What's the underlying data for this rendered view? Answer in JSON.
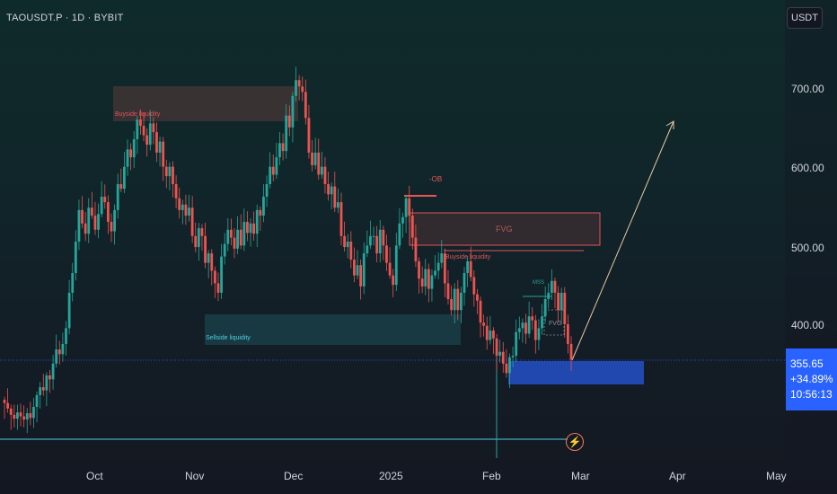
{
  "symbol_title": "TAOUSDT.P · 1D · BYBIT",
  "currency": "USDT",
  "price_tag": {
    "price": "355.65",
    "change": "+34.89%",
    "timer": "10:56:13"
  },
  "chart_data": {
    "type": "candlestick",
    "title": "TAOUSDT.P · 1D · BYBIT",
    "y_unit": "USDT",
    "ylim": [
      270,
      780
    ],
    "price_ticks": [
      "700.00",
      "600.00",
      "500.00",
      "400.00"
    ],
    "price_tick_values": [
      700,
      600,
      500,
      400
    ],
    "x_ticks": [
      "Oct",
      "Nov",
      "Dec",
      "2025",
      "Feb",
      "Mar",
      "Apr",
      "May"
    ],
    "x_tick_dates": [
      "2024-10-01",
      "2024-11-01",
      "2024-12-01",
      "2025-01-01",
      "2025-02-01",
      "2025-03-01",
      "2025-04-01",
      "2025-05-01"
    ],
    "current_price": 355.65,
    "support_line_price": 295,
    "current_price_line": 355.65,
    "candles_start_date": "2024-08-28",
    "candles_end_date": "2025-02-27",
    "closes": [
      300,
      293,
      285,
      280,
      288,
      283,
      279,
      287,
      281,
      295,
      310,
      320,
      316,
      335,
      330,
      350,
      368,
      362,
      375,
      395,
      440,
      465,
      505,
      545,
      528,
      515,
      548,
      538,
      520,
      540,
      562,
      555,
      530,
      518,
      545,
      578,
      572,
      600,
      622,
      612,
      635,
      660,
      652,
      640,
      628,
      655,
      644,
      618,
      632,
      600,
      588,
      600,
      578,
      560,
      545,
      552,
      538,
      548,
      512,
      498,
      522,
      512,
      478,
      490,
      468,
      452,
      440,
      486,
      502,
      520,
      510,
      496,
      520,
      500,
      530,
      516,
      528,
      515,
      545,
      538,
      562,
      578,
      600,
      590,
      612,
      630,
      620,
      665,
      650,
      690,
      710,
      702,
      695,
      662,
      618,
      602,
      618,
      590,
      600,
      578,
      565,
      575,
      548,
      555,
      512,
      498,
      505,
      482,
      462,
      475,
      448,
      490,
      500,
      512,
      512,
      490,
      520,
      500,
      478,
      462,
      450,
      500,
      528,
      536,
      560,
      538,
      510,
      480,
      458,
      448,
      470,
      445,
      462,
      468,
      478,
      490,
      452,
      432,
      418,
      445,
      418,
      440,
      465,
      480,
      460,
      438,
      430,
      402,
      398,
      380,
      392,
      382,
      360,
      365,
      350,
      338,
      358,
      360,
      390,
      395,
      402,
      388,
      410,
      405,
      380,
      395,
      410,
      432,
      440,
      455,
      440,
      418,
      440,
      400,
      375,
      355
    ],
    "annotations": [
      {
        "label": "Buyside liquidity",
        "type": "zone"
      },
      {
        "label": "-OB",
        "type": "level"
      },
      {
        "label": "FVG",
        "type": "zone"
      },
      {
        "label": "Buyside liquidity",
        "type": "level"
      },
      {
        "label": "MSS",
        "type": "label"
      },
      {
        "label": "FVG",
        "type": "zone"
      },
      {
        "label": "Sellside liquidity",
        "type": "zone"
      }
    ],
    "colors": {
      "up": "#26a69a",
      "down": "#ef5350",
      "tag": "#2962ff"
    }
  }
}
